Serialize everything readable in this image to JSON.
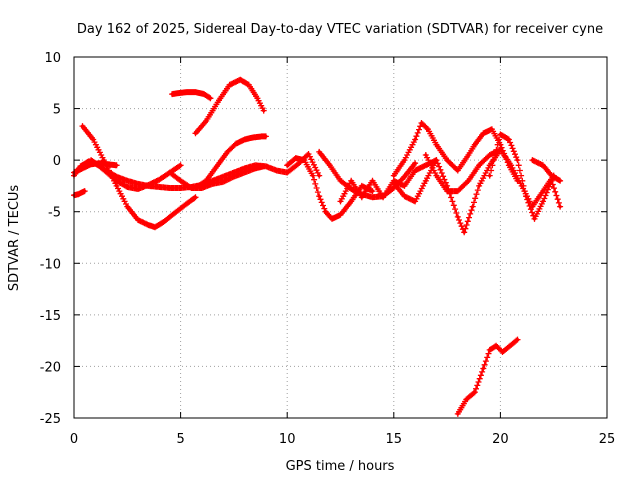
{
  "chart_data": {
    "type": "scatter",
    "title": "Day 162 of 2025, Sidereal Day-to-day VTEC variation (SDTVAR) for receiver cyne",
    "xlabel": "GPS time / hours",
    "ylabel": "SDTVAR / TECUs",
    "xlim": [
      0,
      25
    ],
    "ylim": [
      -25,
      10
    ],
    "x_ticks": [
      0,
      5,
      10,
      15,
      20,
      25
    ],
    "x_tick_labels": [
      "0",
      "5",
      "10",
      "15",
      "20",
      "25"
    ],
    "y_ticks": [
      -25,
      -20,
      -15,
      -10,
      -5,
      0,
      5,
      10
    ],
    "y_tick_labels": [
      "-25",
      "-20",
      "-15",
      "-10",
      "-5",
      "0",
      "5",
      "10"
    ],
    "grid": true,
    "marker": "+",
    "series_color": "#ff0000",
    "series": [
      {
        "name": "s1",
        "x": [
          0,
          0.3,
          0.7,
          1.0,
          1.5,
          2.0,
          2.5,
          3.0,
          3.5,
          4.0,
          4.5,
          5.0,
          5.5,
          6.0,
          6.5,
          7.0,
          7.5,
          8.0,
          8.5,
          9.0,
          9.5,
          10.0,
          10.5,
          11.0,
          11.5
        ],
        "y": [
          -1.5,
          -0.6,
          -0.1,
          -0.3,
          -1.0,
          -1.6,
          -2.0,
          -2.3,
          -2.5,
          -2.6,
          -2.7,
          -2.7,
          -2.6,
          -2.4,
          -2.0,
          -1.6,
          -1.2,
          -0.8,
          -0.5,
          -0.6,
          -1.0,
          -1.2,
          -0.4,
          0.6,
          -1.5
        ]
      },
      {
        "name": "s2",
        "x": [
          0,
          0.4,
          0.8,
          1.2,
          1.6,
          2.0
        ],
        "y": [
          -1.2,
          -0.8,
          -0.4,
          -0.3,
          -0.4,
          -0.5
        ]
      },
      {
        "name": "s3",
        "x": [
          0,
          0.2,
          0.4,
          0.5
        ],
        "y": [
          -3.4,
          -3.3,
          -3.1,
          -3.0
        ]
      },
      {
        "name": "s4",
        "x": [
          0.4,
          0.9,
          1.4,
          2.0,
          2.5,
          3.0,
          3.5,
          3.8,
          4.2,
          4.8,
          5.3,
          5.7
        ],
        "y": [
          3.3,
          2.0,
          0.0,
          -2.5,
          -4.5,
          -5.8,
          -6.3,
          -6.5,
          -6.0,
          -5.0,
          -4.2,
          -3.6
        ]
      },
      {
        "name": "s5",
        "x": [
          0.8,
          1.2,
          1.6,
          2.0,
          2.5,
          3.0,
          3.5,
          4.0,
          4.5,
          5.0
        ],
        "y": [
          0.0,
          -0.6,
          -1.3,
          -2.0,
          -2.6,
          -2.8,
          -2.4,
          -1.9,
          -1.2,
          -0.5
        ]
      },
      {
        "name": "s6",
        "x": [
          4.5,
          5.0,
          5.5,
          6.0,
          6.5,
          7.0,
          7.5,
          8.0,
          8.5,
          8.9
        ],
        "y": [
          -1.2,
          -2.0,
          -2.7,
          -2.7,
          -2.3,
          -2.1,
          -1.6,
          -1.2,
          -0.8,
          -0.6
        ]
      },
      {
        "name": "s7",
        "x": [
          5.7,
          6.2,
          6.7,
          7.2,
          7.6,
          8.0,
          8.4,
          8.8,
          9.0
        ],
        "y": [
          -2.7,
          -2.0,
          -0.6,
          0.8,
          1.6,
          2.0,
          2.2,
          2.3,
          2.3
        ]
      },
      {
        "name": "s8",
        "x": [
          4.6,
          4.9,
          5.3,
          5.7,
          6.1,
          6.4
        ],
        "y": [
          6.4,
          6.5,
          6.6,
          6.6,
          6.4,
          6.0
        ]
      },
      {
        "name": "s9",
        "x": [
          5.7,
          6.2,
          6.8,
          7.3,
          7.8,
          8.2,
          8.6,
          8.9
        ],
        "y": [
          2.6,
          3.8,
          5.8,
          7.3,
          7.8,
          7.3,
          6.0,
          4.8
        ]
      },
      {
        "name": "s10",
        "x": [
          10.0,
          10.4,
          10.8,
          11.2,
          11.5,
          11.8,
          12.1,
          12.5,
          13.0,
          13.5,
          14.0
        ],
        "y": [
          -0.5,
          0.2,
          0.0,
          -1.5,
          -3.5,
          -5.0,
          -5.7,
          -5.3,
          -4.0,
          -2.5,
          -3.0
        ]
      },
      {
        "name": "s11",
        "x": [
          11.5,
          12.0,
          12.5,
          13.0,
          13.5,
          14.0,
          14.5,
          15.0,
          15.5,
          16.0
        ],
        "y": [
          0.8,
          -0.5,
          -2.0,
          -2.8,
          -3.3,
          -3.6,
          -3.5,
          -2.7,
          -1.6,
          -0.3
        ]
      },
      {
        "name": "s12",
        "x": [
          12.5,
          13.0,
          13.5,
          14.0,
          14.5,
          15.0,
          15.5,
          16.0,
          16.5,
          17.0
        ],
        "y": [
          -4.0,
          -2.0,
          -3.6,
          -2.0,
          -3.6,
          -2.0,
          -2.5,
          -1.0,
          -0.5,
          0.0
        ]
      },
      {
        "name": "s13",
        "x": [
          15.0,
          15.5,
          16.0,
          16.3,
          16.6,
          17.0,
          17.5,
          18.0,
          18.5,
          18.8,
          19.2,
          19.6,
          20.0,
          20.4,
          20.8
        ],
        "y": [
          -1.5,
          0.0,
          2.0,
          3.6,
          3.0,
          1.5,
          0.0,
          -1.0,
          0.5,
          1.5,
          2.6,
          3.0,
          1.5,
          -0.5,
          -2.0
        ]
      },
      {
        "name": "s14",
        "x": [
          15.0,
          15.5,
          16.0,
          16.5,
          17.0,
          17.5,
          18.0,
          18.3,
          18.7,
          19.0,
          19.5,
          20.0
        ],
        "y": [
          -2.2,
          -3.5,
          -4.0,
          -2.0,
          0.0,
          -2.5,
          -5.5,
          -7.0,
          -4.5,
          -2.5,
          -0.5,
          1.0
        ]
      },
      {
        "name": "s15",
        "x": [
          16.5,
          17.0,
          17.5,
          18.0,
          18.5,
          19.0,
          19.5,
          20.0,
          20.5,
          21.0,
          21.5,
          22.0,
          22.5
        ],
        "y": [
          0.5,
          -1.5,
          -3.0,
          -3.0,
          -2.0,
          -0.5,
          0.5,
          1.0,
          -0.5,
          -2.5,
          -4.5,
          -3.0,
          -1.5
        ]
      },
      {
        "name": "s16",
        "x": [
          19.5,
          20.0,
          20.4,
          20.8,
          21.2,
          21.6,
          22.0,
          22.4,
          22.8
        ],
        "y": [
          -1.5,
          2.5,
          2.0,
          0.0,
          -3.5,
          -5.7,
          -4.0,
          -2.0,
          -4.5
        ]
      },
      {
        "name": "s17",
        "x": [
          21.5,
          22.0,
          22.4,
          22.8
        ],
        "y": [
          0.0,
          -0.5,
          -1.5,
          -2.0
        ]
      },
      {
        "name": "s18",
        "x": [
          18.0,
          18.4,
          18.8,
          19.2,
          19.5,
          19.8,
          20.1,
          20.4,
          20.8
        ],
        "y": [
          -24.6,
          -23.2,
          -22.5,
          -20.2,
          -18.4,
          -18.0,
          -18.6,
          -18.1,
          -17.4
        ]
      }
    ]
  }
}
